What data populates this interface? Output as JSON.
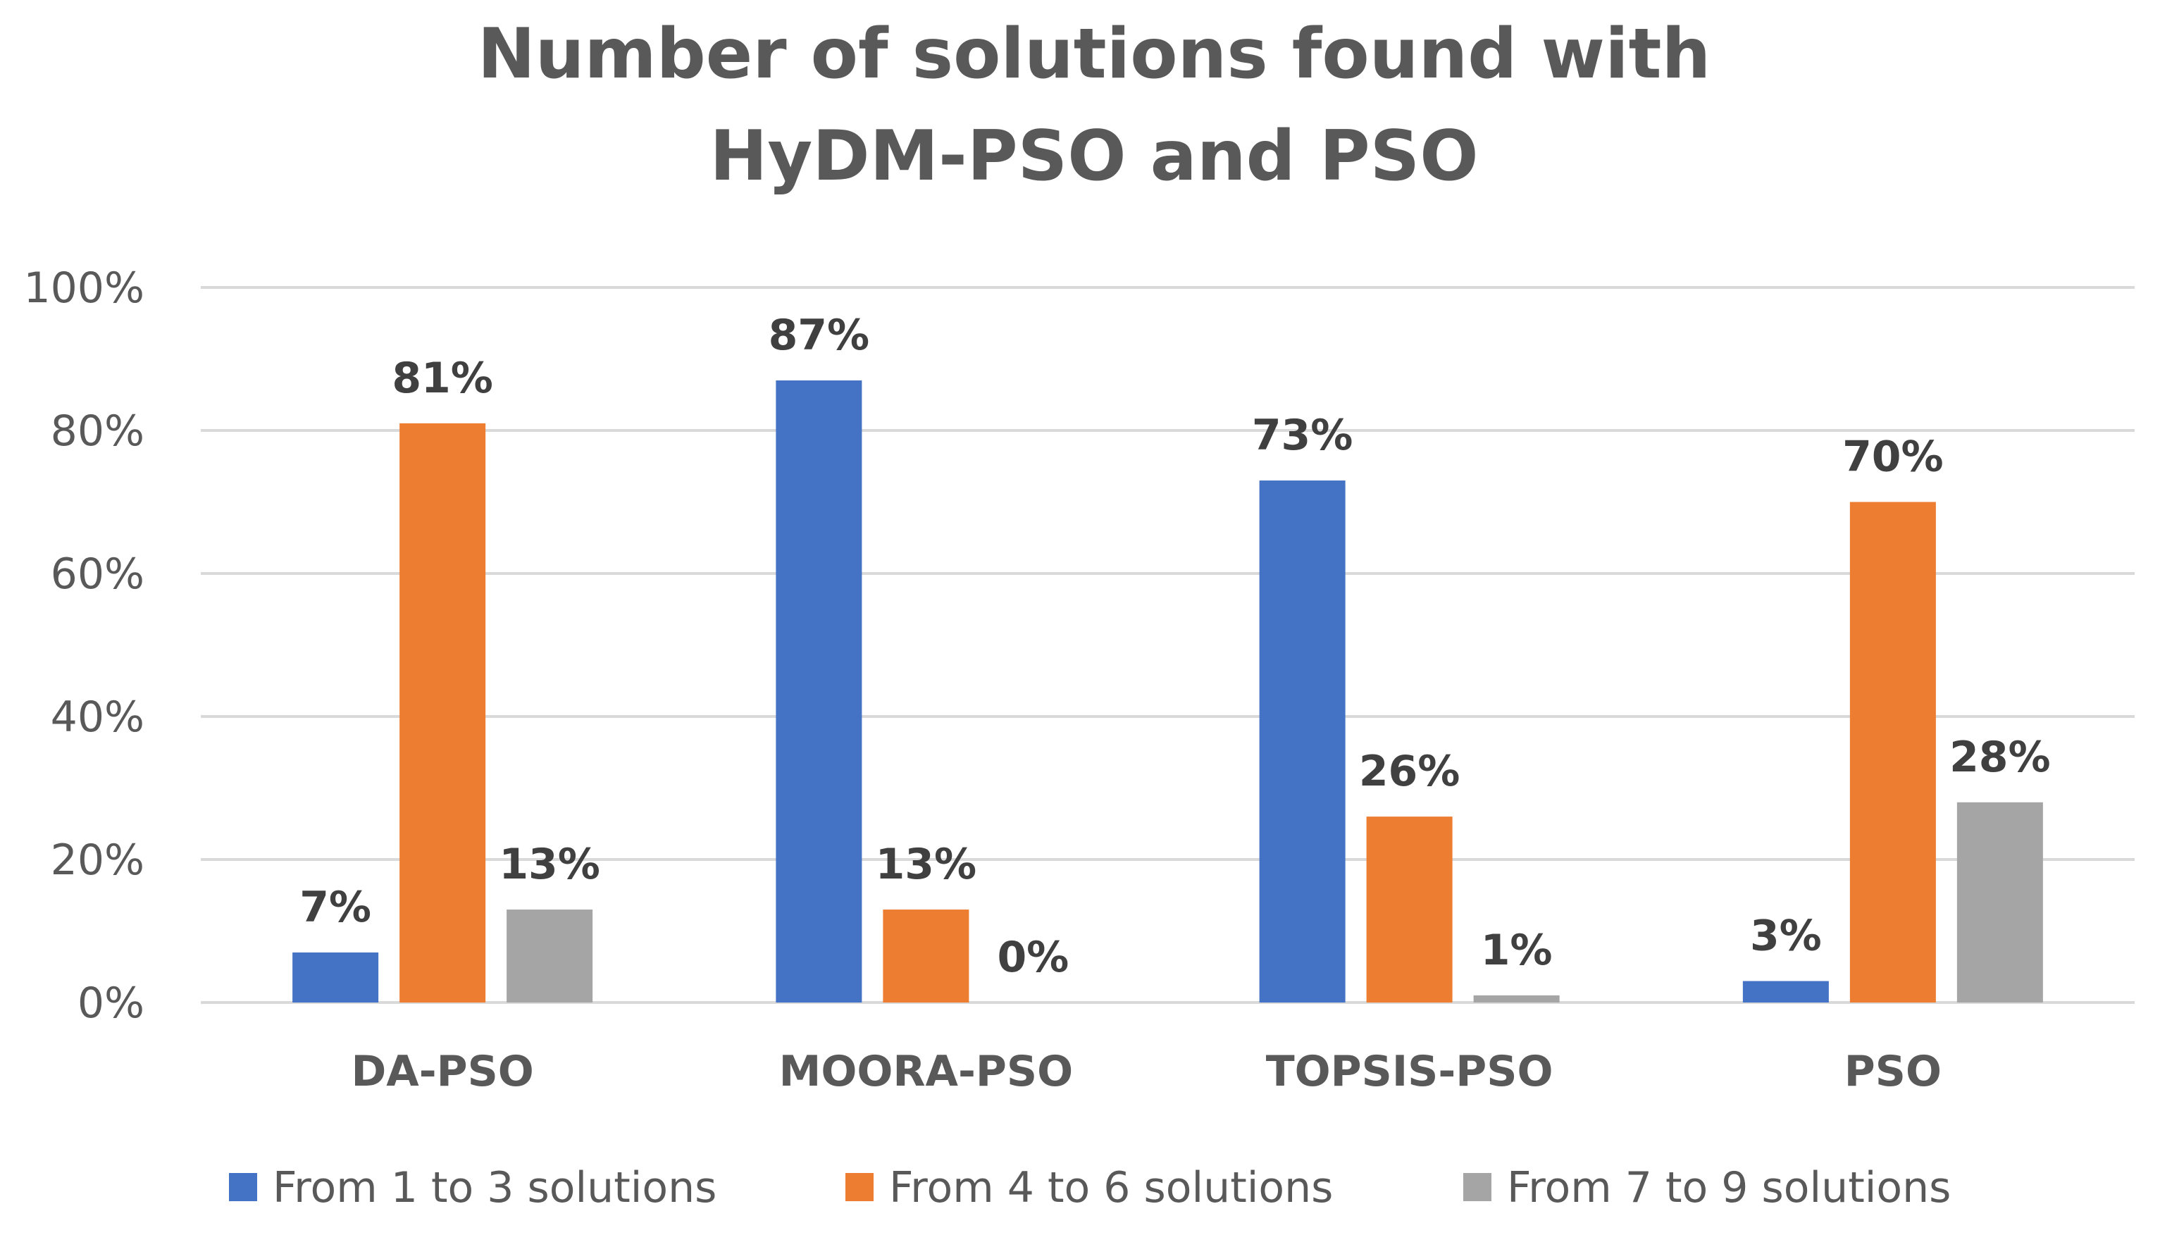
{
  "chart_data": {
    "type": "bar",
    "title_lines": [
      "Number of solutions found with",
      "HyDM-PSO and PSO"
    ],
    "xlabel": "",
    "ylabel": "",
    "categories": [
      "DA-PSO",
      "MOORA-PSO",
      "TOPSIS-PSO",
      "PSO"
    ],
    "series": [
      {
        "name": "From 1 to 3 solutions",
        "color": "#4472C4",
        "values": [
          7,
          87,
          73,
          3
        ]
      },
      {
        "name": "From 4 to 6 solutions",
        "color": "#ED7D31",
        "values": [
          81,
          13,
          26,
          70
        ]
      },
      {
        "name": "From 7 to 9 solutions",
        "color": "#A5A5A5",
        "values": [
          13,
          0,
          1,
          28
        ]
      }
    ],
    "value_format": "percent",
    "ylim": [
      0,
      100
    ],
    "yticks": [
      0,
      20,
      40,
      60,
      80,
      100
    ],
    "ytick_labels": [
      "0%",
      "20%",
      "40%",
      "60%",
      "80%",
      "100%"
    ],
    "grid": true,
    "legend_position": "bottom",
    "data_labels": true
  }
}
